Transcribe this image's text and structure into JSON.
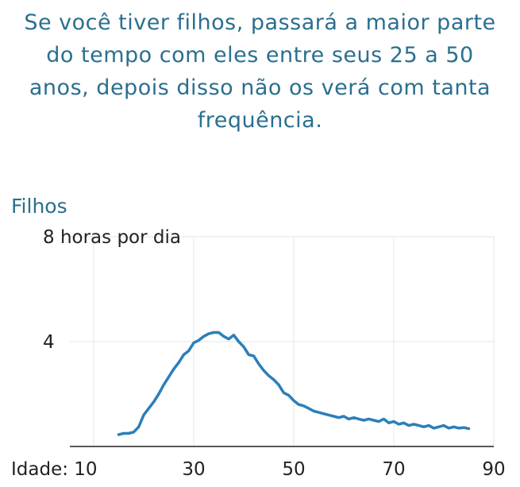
{
  "headline": "Se você tiver filhos, passará a maior parte do tempo com eles entre seus 25 a 50 anos, depois disso não os verá com tanta frequência.",
  "chart_data": {
    "type": "line",
    "title": "Filhos",
    "xlabel": "",
    "ylabel": "",
    "xlim": [
      10,
      90
    ],
    "ylim": [
      0,
      8
    ],
    "x_ticks": [
      10,
      30,
      50,
      70,
      90
    ],
    "x_tick_labels": [
      "Idade: 10",
      "30",
      "50",
      "70",
      "90"
    ],
    "y_ticks": [
      4,
      8
    ],
    "y_tick_labels": [
      "4",
      "8 horas por dia"
    ],
    "grid": true,
    "colors": {
      "series": "#2b7fb8",
      "title": "#2a6f8f"
    },
    "series": [
      {
        "x": [
          15,
          16,
          17,
          18,
          19,
          20,
          21,
          22,
          23,
          24,
          25,
          26,
          27,
          28,
          29,
          30,
          31,
          32,
          33,
          34,
          35,
          36,
          37,
          38,
          39,
          40,
          41,
          42,
          43,
          44,
          45,
          46,
          47,
          48,
          49,
          50,
          51,
          52,
          53,
          54,
          55,
          56,
          57,
          58,
          59,
          60,
          61,
          62,
          63,
          64,
          65,
          66,
          67,
          68,
          69,
          70,
          71,
          72,
          73,
          74,
          75,
          76,
          77,
          78,
          79,
          80,
          81,
          82,
          83,
          84,
          85
        ],
        "values": [
          0.45,
          0.5,
          0.5,
          0.55,
          0.75,
          1.2,
          1.45,
          1.7,
          2.0,
          2.35,
          2.65,
          2.95,
          3.2,
          3.5,
          3.65,
          3.95,
          4.05,
          4.2,
          4.3,
          4.35,
          4.35,
          4.2,
          4.1,
          4.25,
          4.0,
          3.8,
          3.5,
          3.45,
          3.15,
          2.9,
          2.7,
          2.55,
          2.35,
          2.05,
          1.95,
          1.75,
          1.6,
          1.55,
          1.45,
          1.35,
          1.3,
          1.25,
          1.2,
          1.15,
          1.1,
          1.15,
          1.05,
          1.1,
          1.05,
          1.0,
          1.05,
          1.0,
          0.95,
          1.05,
          0.9,
          0.95,
          0.85,
          0.9,
          0.8,
          0.85,
          0.8,
          0.75,
          0.8,
          0.7,
          0.75,
          0.8,
          0.7,
          0.75,
          0.7,
          0.72,
          0.68
        ]
      }
    ]
  }
}
